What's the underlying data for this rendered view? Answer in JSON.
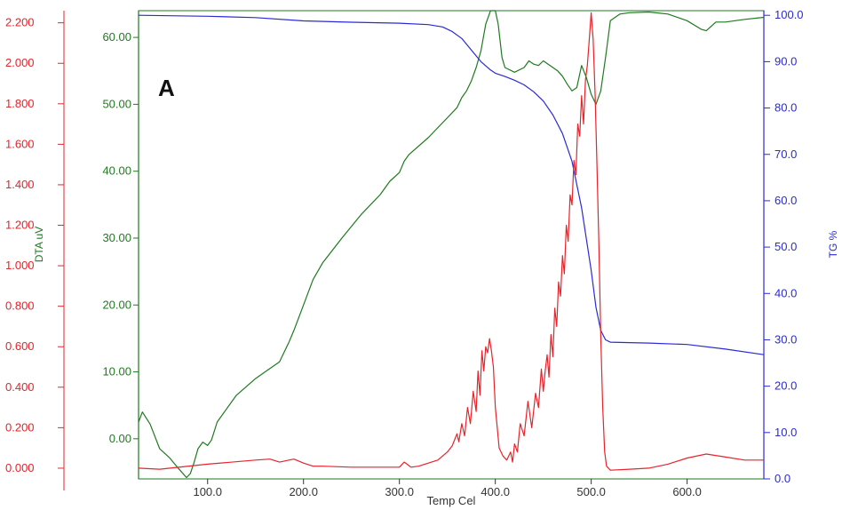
{
  "chart_data": {
    "type": "line",
    "panel_label": "A",
    "xlabel": "Temp Cel",
    "xlim": [
      28,
      680
    ],
    "x_ticks": [
      "100.0",
      "200.0",
      "300.0",
      "400.0",
      "500.0",
      "600.0"
    ],
    "x_tick_values": [
      100,
      200,
      300,
      400,
      500,
      600
    ],
    "colors": {
      "dta": "#1f7a1f",
      "tg": "#2a2ad6",
      "dtg": "#e8232a",
      "x": "#333333"
    },
    "axes": {
      "dtg": {
        "label": "",
        "lim": [
          -0.11,
          2.26
        ],
        "ticks": [
          "0.000",
          "0.200",
          "0.400",
          "0.600",
          "0.800",
          "1.000",
          "1.200",
          "1.400",
          "1.600",
          "1.800",
          "2.000",
          "2.200"
        ],
        "tick_values": [
          0,
          0.2,
          0.4,
          0.6,
          0.8,
          1.0,
          1.2,
          1.4,
          1.6,
          1.8,
          2.0,
          2.2
        ]
      },
      "dta": {
        "label": "DTA uV",
        "lim": [
          -6.0,
          64.0
        ],
        "ticks": [
          "0.00",
          "10.00",
          "20.00",
          "30.00",
          "40.00",
          "50.00",
          "60.00"
        ],
        "tick_values": [
          0,
          10,
          20,
          30,
          40,
          50,
          60
        ]
      },
      "tg": {
        "label": "TG %",
        "lim": [
          0.0,
          101.0
        ],
        "ticks": [
          "0.0",
          "10.0",
          "20.0",
          "30.0",
          "40.0",
          "50.0",
          "60.0",
          "70.0",
          "80.0",
          "90.0",
          "100.0"
        ],
        "tick_values": [
          0,
          10,
          20,
          30,
          40,
          50,
          60,
          70,
          80,
          90,
          100
        ]
      }
    },
    "series": [
      {
        "axis": "dta",
        "x": [
          28,
          32,
          40,
          50,
          60,
          70,
          78,
          82,
          86,
          90,
          95,
          100,
          104,
          110,
          130,
          150,
          160,
          175,
          185,
          190,
          200,
          210,
          220,
          240,
          260,
          280,
          290,
          300,
          305,
          310,
          330,
          350,
          360,
          365,
          370,
          375,
          380,
          385,
          390,
          395,
          398,
          400,
          403,
          407,
          410,
          420,
          430,
          435,
          440,
          445,
          450,
          455,
          460,
          465,
          470,
          475,
          480,
          485,
          490,
          495,
          500,
          505,
          510,
          515,
          520,
          530,
          540,
          560,
          580,
          600,
          615,
          620,
          630,
          640,
          660,
          680
        ],
        "y": [
          2.5,
          4.0,
          2.2,
          -1.5,
          -2.8,
          -4.5,
          -5.8,
          -5.2,
          -3.5,
          -1.5,
          -0.5,
          -1.0,
          -0.2,
          2.5,
          6.5,
          9.0,
          10.0,
          11.5,
          14.5,
          16.2,
          20.0,
          23.8,
          26.3,
          30.0,
          33.5,
          36.5,
          38.5,
          39.8,
          41.5,
          42.5,
          45.0,
          48.0,
          49.5,
          51.0,
          52.0,
          53.5,
          55.5,
          58.0,
          62.0,
          66.5,
          68.0,
          67.0,
          62.0,
          57.0,
          55.5,
          54.8,
          55.5,
          56.5,
          56.0,
          55.8,
          56.5,
          56.0,
          55.5,
          55.0,
          54.2,
          53.0,
          52.0,
          52.5,
          55.8,
          54.0,
          51.5,
          50.0,
          52.0,
          57.0,
          62.5,
          63.5,
          63.7,
          63.8,
          63.5,
          62.5,
          61.2,
          61.0,
          62.3,
          62.3,
          62.7,
          63.0
        ]
      },
      {
        "axis": "tg",
        "x": [
          28,
          100,
          150,
          200,
          250,
          300,
          330,
          345,
          355,
          365,
          375,
          385,
          395,
          400,
          410,
          420,
          430,
          440,
          450,
          460,
          470,
          480,
          490,
          500,
          505,
          510,
          515,
          520,
          540,
          560,
          600,
          640,
          680
        ],
        "y": [
          100.0,
          99.8,
          99.5,
          98.8,
          98.5,
          98.3,
          98.0,
          97.5,
          96.5,
          95.0,
          92.5,
          90.0,
          88.2,
          87.5,
          86.8,
          86.0,
          85.0,
          83.5,
          81.5,
          78.5,
          74.5,
          68.5,
          58.5,
          45.0,
          37.0,
          32.0,
          30.0,
          29.5,
          29.4,
          29.3,
          29.0,
          28.0,
          26.8
        ]
      },
      {
        "axis": "dtg",
        "x": [
          28,
          50,
          100,
          150,
          165,
          175,
          190,
          200,
          210,
          220,
          250,
          300,
          305,
          308,
          312,
          320,
          340,
          350,
          355,
          360,
          362,
          365,
          368,
          371,
          374,
          377,
          380,
          382,
          384,
          386,
          388,
          390,
          392,
          394,
          396,
          398,
          400,
          404,
          408,
          412,
          416,
          418,
          420,
          423,
          426,
          430,
          434,
          438,
          442,
          445,
          448,
          450,
          452,
          454,
          456,
          458,
          460,
          462,
          464,
          466,
          468,
          470,
          472,
          474,
          476,
          478,
          480,
          482,
          484,
          486,
          488,
          490,
          492,
          494,
          496,
          498,
          500,
          502,
          504,
          506,
          508,
          510,
          512,
          514,
          516,
          520,
          540,
          560,
          580,
          600,
          620,
          640,
          660,
          680
        ],
        "y": [
          0.0,
          -0.005,
          0.02,
          0.04,
          0.045,
          0.03,
          0.045,
          0.025,
          0.01,
          0.01,
          0.005,
          0.005,
          0.03,
          0.02,
          0.005,
          0.01,
          0.04,
          0.08,
          0.11,
          0.17,
          0.13,
          0.22,
          0.16,
          0.3,
          0.22,
          0.38,
          0.28,
          0.48,
          0.36,
          0.58,
          0.48,
          0.6,
          0.57,
          0.64,
          0.58,
          0.5,
          0.3,
          0.1,
          0.06,
          0.04,
          0.08,
          0.03,
          0.12,
          0.08,
          0.22,
          0.16,
          0.33,
          0.2,
          0.37,
          0.3,
          0.49,
          0.38,
          0.48,
          0.56,
          0.45,
          0.66,
          0.55,
          0.79,
          0.7,
          0.92,
          0.85,
          1.05,
          0.96,
          1.2,
          1.12,
          1.35,
          1.3,
          1.52,
          1.45,
          1.7,
          1.64,
          1.84,
          1.7,
          1.92,
          1.99,
          2.12,
          2.25,
          2.12,
          1.85,
          1.5,
          1.1,
          0.65,
          0.3,
          0.08,
          0.01,
          -0.01,
          -0.005,
          0.0,
          0.02,
          0.05,
          0.07,
          0.055,
          0.04,
          0.04
        ]
      }
    ]
  }
}
